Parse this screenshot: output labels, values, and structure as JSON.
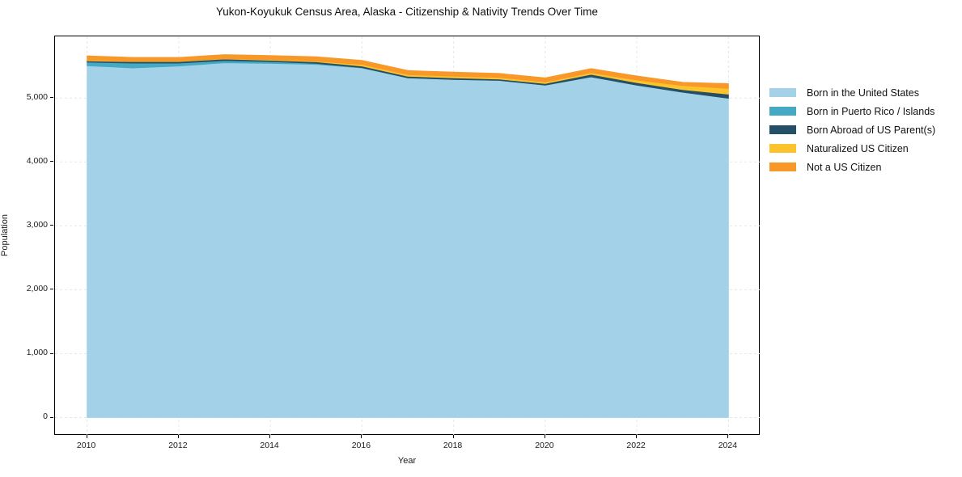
{
  "chart_data": {
    "type": "area",
    "stacked": true,
    "title": "Yukon-Koyukuk Census Area, Alaska - Citizenship & Nativity Trends Over Time",
    "xlabel": "Year",
    "ylabel": "Population",
    "x": [
      2010,
      2011,
      2012,
      2013,
      2014,
      2015,
      2016,
      2017,
      2018,
      2019,
      2020,
      2021,
      2022,
      2023,
      2024
    ],
    "series": [
      {
        "name": "Born in the United States",
        "color": "#a3d2e8",
        "values": [
          5505,
          5470,
          5500,
          5550,
          5540,
          5525,
          5470,
          5315,
          5290,
          5275,
          5200,
          5330,
          5200,
          5090,
          4995
        ]
      },
      {
        "name": "Born in Puerto Rico / Islands",
        "color": "#45a9c4",
        "values": [
          55,
          75,
          45,
          35,
          30,
          15,
          5,
          0,
          0,
          0,
          0,
          0,
          0,
          0,
          0
        ]
      },
      {
        "name": "Born Abroad of US Parent(s)",
        "color": "#254f66",
        "values": [
          20,
          25,
          25,
          25,
          20,
          25,
          25,
          25,
          25,
          20,
          25,
          40,
          40,
          40,
          65
        ]
      },
      {
        "name": "Naturalized US Citizen",
        "color": "#fcc32d",
        "values": [
          10,
          5,
          5,
          5,
          10,
          10,
          25,
          25,
          25,
          25,
          25,
          25,
          40,
          65,
          90
        ]
      },
      {
        "name": "Not a US Citizen",
        "color": "#f89828",
        "values": [
          70,
          60,
          60,
          65,
          65,
          70,
          65,
          65,
          65,
          65,
          65,
          65,
          65,
          50,
          75
        ]
      }
    ],
    "xticks": {
      "values": [
        2010,
        2012,
        2014,
        2016,
        2018,
        2020,
        2022,
        2024
      ],
      "labels": [
        "2010",
        "2012",
        "2014",
        "2016",
        "2018",
        "2020",
        "2022",
        "2024"
      ]
    },
    "yticks": {
      "values": [
        0,
        1000,
        2000,
        3000,
        4000,
        5000
      ],
      "labels": [
        "0",
        "1,000",
        "2,000",
        "3,000",
        "4,000",
        "5,000"
      ]
    },
    "xlim": [
      2009.3,
      2024.7
    ],
    "ylim": [
      -284,
      5964
    ],
    "grid": true,
    "legend_position": "right"
  },
  "colors": {
    "background": "#ffffff",
    "grid": "#e7e7e7",
    "spine": "#000000",
    "text": "#1a1a1a"
  }
}
